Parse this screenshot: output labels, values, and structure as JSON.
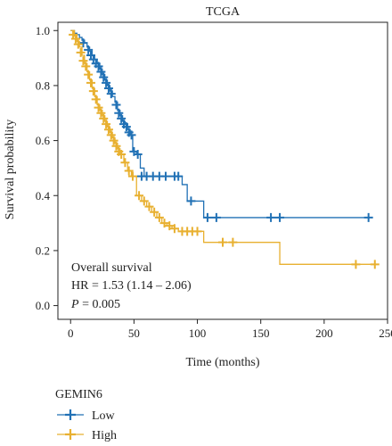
{
  "chart_data": {
    "type": "line",
    "title": "TCGA",
    "xlabel": "Time (months)",
    "ylabel": "Survival probability",
    "xlim": [
      -10,
      250
    ],
    "ylim": [
      -0.05,
      1.03
    ],
    "xticks": [
      0,
      50,
      100,
      150,
      200,
      250
    ],
    "yticks": [
      0.0,
      0.2,
      0.4,
      0.6,
      0.8,
      1.0
    ],
    "ytick_labels": [
      "0.0",
      "0.2",
      "0.4",
      "0.6",
      "0.8",
      "1.0"
    ],
    "grid": false,
    "legend": {
      "title": "GEMIN6",
      "placement": "bottom-left",
      "entries": [
        "Low",
        "High"
      ]
    },
    "annotations": {
      "line1": "Overall survival",
      "line2": "HR = 1.53 (1.14 – 2.06)",
      "p_label": "P",
      "p_value": " = 0.005"
    },
    "series": [
      {
        "name": "Low",
        "color": "#2171b5",
        "steps": [
          [
            0,
            1.0
          ],
          [
            3,
            0.99
          ],
          [
            5,
            0.985
          ],
          [
            7,
            0.975
          ],
          [
            9,
            0.965
          ],
          [
            11,
            0.955
          ],
          [
            13,
            0.94
          ],
          [
            15,
            0.925
          ],
          [
            17,
            0.91
          ],
          [
            19,
            0.895
          ],
          [
            21,
            0.88
          ],
          [
            23,
            0.86
          ],
          [
            25,
            0.84
          ],
          [
            27,
            0.82
          ],
          [
            29,
            0.8
          ],
          [
            31,
            0.78
          ],
          [
            33,
            0.76
          ],
          [
            35,
            0.74
          ],
          [
            37,
            0.71
          ],
          [
            39,
            0.69
          ],
          [
            41,
            0.67
          ],
          [
            43,
            0.66
          ],
          [
            45,
            0.64
          ],
          [
            47,
            0.62
          ],
          [
            49,
            0.56
          ],
          [
            52,
            0.55
          ],
          [
            55,
            0.5
          ],
          [
            58,
            0.47
          ],
          [
            88,
            0.44
          ],
          [
            92,
            0.38
          ],
          [
            105,
            0.32
          ],
          [
            235,
            0.32
          ]
        ],
        "censors": [
          [
            10,
            0.955
          ],
          [
            14,
            0.93
          ],
          [
            16,
            0.91
          ],
          [
            18,
            0.895
          ],
          [
            20,
            0.88
          ],
          [
            22,
            0.87
          ],
          [
            24,
            0.85
          ],
          [
            26,
            0.83
          ],
          [
            28,
            0.81
          ],
          [
            30,
            0.79
          ],
          [
            32,
            0.77
          ],
          [
            36,
            0.73
          ],
          [
            38,
            0.7
          ],
          [
            40,
            0.68
          ],
          [
            42,
            0.66
          ],
          [
            44,
            0.65
          ],
          [
            46,
            0.63
          ],
          [
            48,
            0.62
          ],
          [
            50,
            0.56
          ],
          [
            53,
            0.55
          ],
          [
            56,
            0.47
          ],
          [
            60,
            0.47
          ],
          [
            65,
            0.47
          ],
          [
            70,
            0.47
          ],
          [
            75,
            0.47
          ],
          [
            82,
            0.47
          ],
          [
            85,
            0.47
          ],
          [
            95,
            0.38
          ],
          [
            108,
            0.32
          ],
          [
            115,
            0.32
          ],
          [
            158,
            0.32
          ],
          [
            165,
            0.32
          ],
          [
            235,
            0.32
          ]
        ]
      },
      {
        "name": "High",
        "color": "#e8b030",
        "steps": [
          [
            0,
            1.0
          ],
          [
            3,
            0.98
          ],
          [
            5,
            0.96
          ],
          [
            7,
            0.94
          ],
          [
            9,
            0.91
          ],
          [
            11,
            0.88
          ],
          [
            13,
            0.85
          ],
          [
            15,
            0.82
          ],
          [
            17,
            0.79
          ],
          [
            19,
            0.76
          ],
          [
            21,
            0.73
          ],
          [
            23,
            0.71
          ],
          [
            25,
            0.69
          ],
          [
            27,
            0.67
          ],
          [
            29,
            0.65
          ],
          [
            31,
            0.63
          ],
          [
            33,
            0.61
          ],
          [
            35,
            0.59
          ],
          [
            37,
            0.57
          ],
          [
            39,
            0.55
          ],
          [
            42,
            0.52
          ],
          [
            45,
            0.49
          ],
          [
            48,
            0.47
          ],
          [
            52,
            0.4
          ],
          [
            56,
            0.38
          ],
          [
            60,
            0.36
          ],
          [
            64,
            0.34
          ],
          [
            68,
            0.32
          ],
          [
            72,
            0.3
          ],
          [
            76,
            0.29
          ],
          [
            80,
            0.28
          ],
          [
            85,
            0.27
          ],
          [
            105,
            0.23
          ],
          [
            165,
            0.15
          ],
          [
            240,
            0.15
          ]
        ],
        "censors": [
          [
            2,
            0.985
          ],
          [
            4,
            0.97
          ],
          [
            6,
            0.95
          ],
          [
            8,
            0.92
          ],
          [
            10,
            0.89
          ],
          [
            12,
            0.87
          ],
          [
            14,
            0.84
          ],
          [
            16,
            0.81
          ],
          [
            18,
            0.78
          ],
          [
            20,
            0.75
          ],
          [
            22,
            0.72
          ],
          [
            24,
            0.7
          ],
          [
            26,
            0.68
          ],
          [
            28,
            0.66
          ],
          [
            30,
            0.64
          ],
          [
            32,
            0.62
          ],
          [
            34,
            0.6
          ],
          [
            36,
            0.58
          ],
          [
            38,
            0.56
          ],
          [
            40,
            0.55
          ],
          [
            43,
            0.52
          ],
          [
            46,
            0.49
          ],
          [
            49,
            0.47
          ],
          [
            54,
            0.4
          ],
          [
            58,
            0.38
          ],
          [
            62,
            0.36
          ],
          [
            66,
            0.34
          ],
          [
            70,
            0.32
          ],
          [
            74,
            0.3
          ],
          [
            78,
            0.29
          ],
          [
            82,
            0.28
          ],
          [
            88,
            0.27
          ],
          [
            92,
            0.27
          ],
          [
            96,
            0.27
          ],
          [
            100,
            0.27
          ],
          [
            120,
            0.23
          ],
          [
            128,
            0.23
          ],
          [
            225,
            0.15
          ],
          [
            240,
            0.15
          ]
        ]
      }
    ]
  }
}
